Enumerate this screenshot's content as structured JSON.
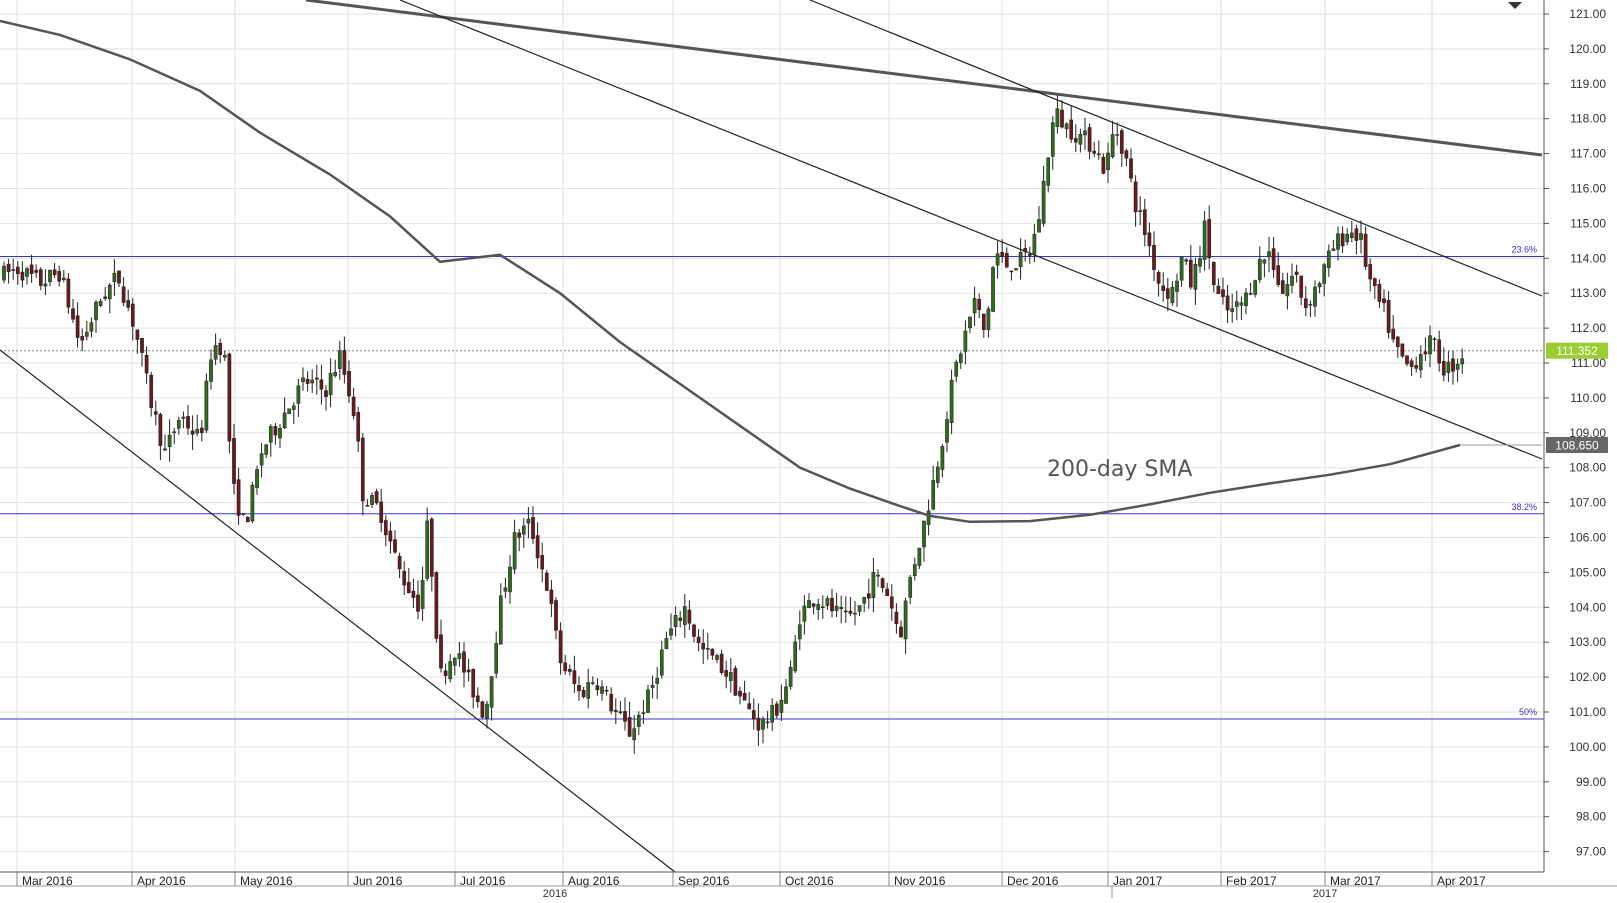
{
  "chart_data": {
    "type": "candlestick",
    "y_axis": {
      "ylim": [
        96.0,
        121.6
      ],
      "ticks": [
        "121.00",
        "120.00",
        "119.00",
        "118.00",
        "117.00",
        "116.00",
        "115.00",
        "114.00",
        "113.00",
        "112.00",
        "111.00",
        "110.00",
        "109.00",
        "108.00",
        "107.00",
        "106.00",
        "105.00",
        "104.00",
        "103.00",
        "102.00",
        "101.00",
        "100.00",
        "99.00",
        "98.00",
        "97.00"
      ],
      "grid": true
    },
    "x_axis": {
      "months": [
        "Mar 2016",
        "Apr 2016",
        "May 2016",
        "Jun 2016",
        "Jul 2016",
        "Aug 2016",
        "Sep 2016",
        "Oct 2016",
        "Nov 2016",
        "Dec 2016",
        "Jan 2017",
        "Feb 2017",
        "Mar 2017",
        "Apr 2017"
      ],
      "years": [
        "2016",
        "2017"
      ],
      "grid": true
    },
    "price_tags": [
      {
        "value": "111.352",
        "color": "#9acd32"
      },
      {
        "value": "108.650",
        "color": "#666666"
      }
    ],
    "fib_levels": [
      {
        "label": "23.6%",
        "price": 114.05
      },
      {
        "label": "38.2%",
        "price": 106.68
      },
      {
        "label": "50%",
        "price": 100.8
      }
    ],
    "sma_label": "200-day SMA",
    "colors": {
      "up": "#2e6b1f",
      "down": "#6b1a1a",
      "fib": "#3333dd",
      "sma": "#555555",
      "trend": "#222222"
    }
  }
}
